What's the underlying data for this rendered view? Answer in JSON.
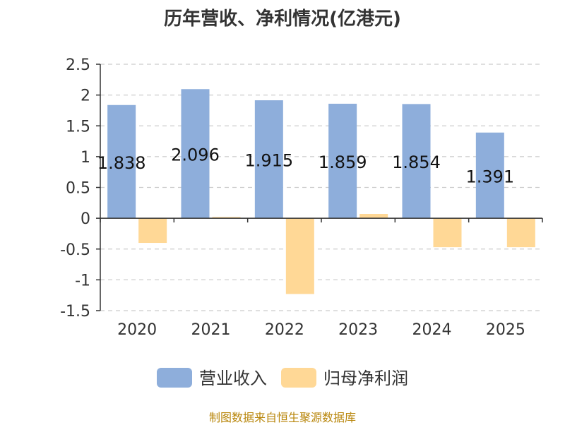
{
  "title": "历年营收、净利情况(亿港元)",
  "source": "制图数据来自恒生聚源数据库",
  "chart_data": {
    "type": "bar",
    "categories": [
      "2020",
      "2021",
      "2022",
      "2023",
      "2024",
      "2025"
    ],
    "series": [
      {
        "name": "营业收入",
        "color": "#8eaedb",
        "values": [
          1.838,
          2.096,
          1.915,
          1.859,
          1.854,
          1.391
        ],
        "data_labels": [
          "1.838",
          "2.096",
          "1.915",
          "1.859",
          "1.854",
          "1.391"
        ]
      },
      {
        "name": "归母净利润",
        "color": "#ffd896",
        "values": [
          -0.4,
          0.02,
          -1.23,
          0.07,
          -0.47,
          -0.47
        ]
      }
    ],
    "ylim": [
      -1.5,
      2.5
    ],
    "yticks": [
      2.5,
      2,
      1.5,
      1,
      0.5,
      0,
      -0.5,
      -1,
      -1.5
    ],
    "ytick_labels": [
      "2.5",
      "2",
      "1.5",
      "1",
      "0.5",
      "0",
      "-0.5",
      "-1",
      "-1.5"
    ],
    "grid": true,
    "legend_position": "bottom-center"
  }
}
